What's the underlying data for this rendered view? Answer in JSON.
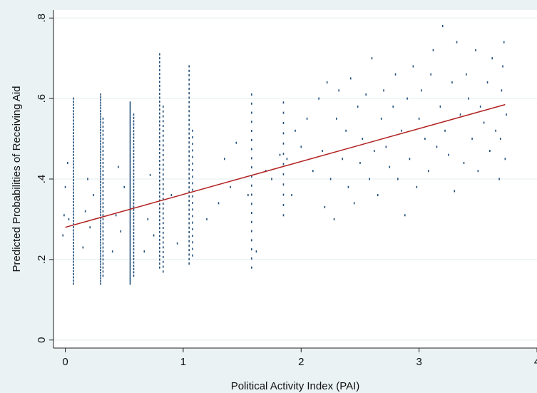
{
  "chart_data": {
    "type": "scatter",
    "title": "",
    "xlabel": "Political Activity Index (PAI)",
    "ylabel": "Predicted Probabilities of Receiving Aid",
    "xlim": [
      -0.1,
      4.0
    ],
    "ylim": [
      -0.02,
      0.82
    ],
    "x_ticks": [
      0,
      1,
      2,
      3,
      4
    ],
    "x_tick_labels": [
      "0",
      "1",
      "2",
      "3",
      "4"
    ],
    "y_ticks": [
      0,
      0.2,
      0.4,
      0.6,
      0.8
    ],
    "y_tick_labels": [
      "0",
      ".2",
      ".4",
      ".6",
      ".8"
    ],
    "grid": true,
    "legend": "none",
    "colors": {
      "points": "#1f4e79",
      "fit_line": "#b22222",
      "plot_bg": "#ffffff",
      "page_bg": "#eaf2f3",
      "grid": "#e3ecee"
    },
    "series": [
      {
        "type": "scatter",
        "columns": [
          {
            "x": 0.07,
            "min": 0.14,
            "max": 0.6,
            "n": 60
          },
          {
            "x": 0.3,
            "min": 0.14,
            "max": 0.61,
            "n": 70
          },
          {
            "x": 0.32,
            "min": 0.16,
            "max": 0.55,
            "n": 40
          },
          {
            "x": 0.55,
            "min": 0.14,
            "max": 0.59,
            "n": 90
          },
          {
            "x": 0.58,
            "min": 0.16,
            "max": 0.56,
            "n": 50
          },
          {
            "x": 0.8,
            "min": 0.18,
            "max": 0.71,
            "n": 55
          },
          {
            "x": 0.83,
            "min": 0.17,
            "max": 0.58,
            "n": 35
          },
          {
            "x": 1.05,
            "min": 0.19,
            "max": 0.68,
            "n": 45
          },
          {
            "x": 1.08,
            "min": 0.21,
            "max": 0.52,
            "n": 20
          },
          {
            "x": 1.58,
            "min": 0.18,
            "max": 0.61,
            "n": 20
          },
          {
            "x": 1.85,
            "min": 0.31,
            "max": 0.59,
            "n": 12
          }
        ],
        "points": [
          [
            -0.02,
            0.26
          ],
          [
            -0.01,
            0.31
          ],
          [
            0.0,
            0.38
          ],
          [
            0.02,
            0.44
          ],
          [
            0.03,
            0.3
          ],
          [
            0.15,
            0.23
          ],
          [
            0.17,
            0.32
          ],
          [
            0.19,
            0.4
          ],
          [
            0.21,
            0.28
          ],
          [
            0.24,
            0.36
          ],
          [
            0.4,
            0.22
          ],
          [
            0.43,
            0.31
          ],
          [
            0.45,
            0.43
          ],
          [
            0.47,
            0.27
          ],
          [
            0.5,
            0.38
          ],
          [
            0.67,
            0.22
          ],
          [
            0.7,
            0.3
          ],
          [
            0.72,
            0.41
          ],
          [
            0.75,
            0.26
          ],
          [
            0.9,
            0.36
          ],
          [
            0.95,
            0.24
          ],
          [
            1.2,
            0.3
          ],
          [
            1.3,
            0.34
          ],
          [
            1.35,
            0.45
          ],
          [
            1.4,
            0.38
          ],
          [
            1.45,
            0.49
          ],
          [
            1.55,
            0.36
          ],
          [
            1.62,
            0.22
          ],
          [
            1.7,
            0.42
          ],
          [
            1.75,
            0.4
          ],
          [
            1.82,
            0.46
          ],
          [
            1.88,
            0.45
          ],
          [
            1.92,
            0.36
          ],
          [
            1.95,
            0.52
          ],
          [
            2.0,
            0.48
          ],
          [
            2.05,
            0.55
          ],
          [
            2.1,
            0.42
          ],
          [
            2.15,
            0.6
          ],
          [
            2.18,
            0.47
          ],
          [
            2.2,
            0.33
          ],
          [
            2.22,
            0.64
          ],
          [
            2.25,
            0.4
          ],
          [
            2.28,
            0.3
          ],
          [
            2.3,
            0.55
          ],
          [
            2.32,
            0.62
          ],
          [
            2.35,
            0.45
          ],
          [
            2.38,
            0.52
          ],
          [
            2.4,
            0.38
          ],
          [
            2.42,
            0.65
          ],
          [
            2.45,
            0.34
          ],
          [
            2.48,
            0.58
          ],
          [
            2.5,
            0.44
          ],
          [
            2.52,
            0.5
          ],
          [
            2.55,
            0.61
          ],
          [
            2.58,
            0.4
          ],
          [
            2.6,
            0.7
          ],
          [
            2.62,
            0.47
          ],
          [
            2.65,
            0.36
          ],
          [
            2.68,
            0.55
          ],
          [
            2.7,
            0.62
          ],
          [
            2.72,
            0.48
          ],
          [
            2.75,
            0.43
          ],
          [
            2.78,
            0.58
          ],
          [
            2.8,
            0.66
          ],
          [
            2.82,
            0.4
          ],
          [
            2.85,
            0.52
          ],
          [
            2.88,
            0.31
          ],
          [
            2.9,
            0.6
          ],
          [
            2.92,
            0.45
          ],
          [
            2.95,
            0.68
          ],
          [
            2.98,
            0.38
          ],
          [
            3.0,
            0.55
          ],
          [
            3.02,
            0.62
          ],
          [
            3.05,
            0.5
          ],
          [
            3.08,
            0.42
          ],
          [
            3.1,
            0.66
          ],
          [
            3.12,
            0.72
          ],
          [
            3.15,
            0.48
          ],
          [
            3.18,
            0.58
          ],
          [
            3.2,
            0.78
          ],
          [
            3.22,
            0.52
          ],
          [
            3.25,
            0.46
          ],
          [
            3.28,
            0.64
          ],
          [
            3.3,
            0.37
          ],
          [
            3.32,
            0.74
          ],
          [
            3.35,
            0.56
          ],
          [
            3.38,
            0.44
          ],
          [
            3.4,
            0.66
          ],
          [
            3.42,
            0.6
          ],
          [
            3.45,
            0.5
          ],
          [
            3.48,
            0.72
          ],
          [
            3.5,
            0.42
          ],
          [
            3.52,
            0.58
          ],
          [
            3.55,
            0.54
          ],
          [
            3.58,
            0.64
          ],
          [
            3.6,
            0.47
          ],
          [
            3.62,
            0.7
          ],
          [
            3.65,
            0.52
          ],
          [
            3.68,
            0.4
          ],
          [
            3.7,
            0.62
          ],
          [
            3.72,
            0.74
          ],
          [
            3.73,
            0.45
          ],
          [
            3.74,
            0.56
          ],
          [
            3.71,
            0.68
          ],
          [
            3.69,
            0.5
          ]
        ]
      },
      {
        "type": "line",
        "x": [
          0.0,
          3.73
        ],
        "y": [
          0.28,
          0.585
        ]
      }
    ]
  }
}
